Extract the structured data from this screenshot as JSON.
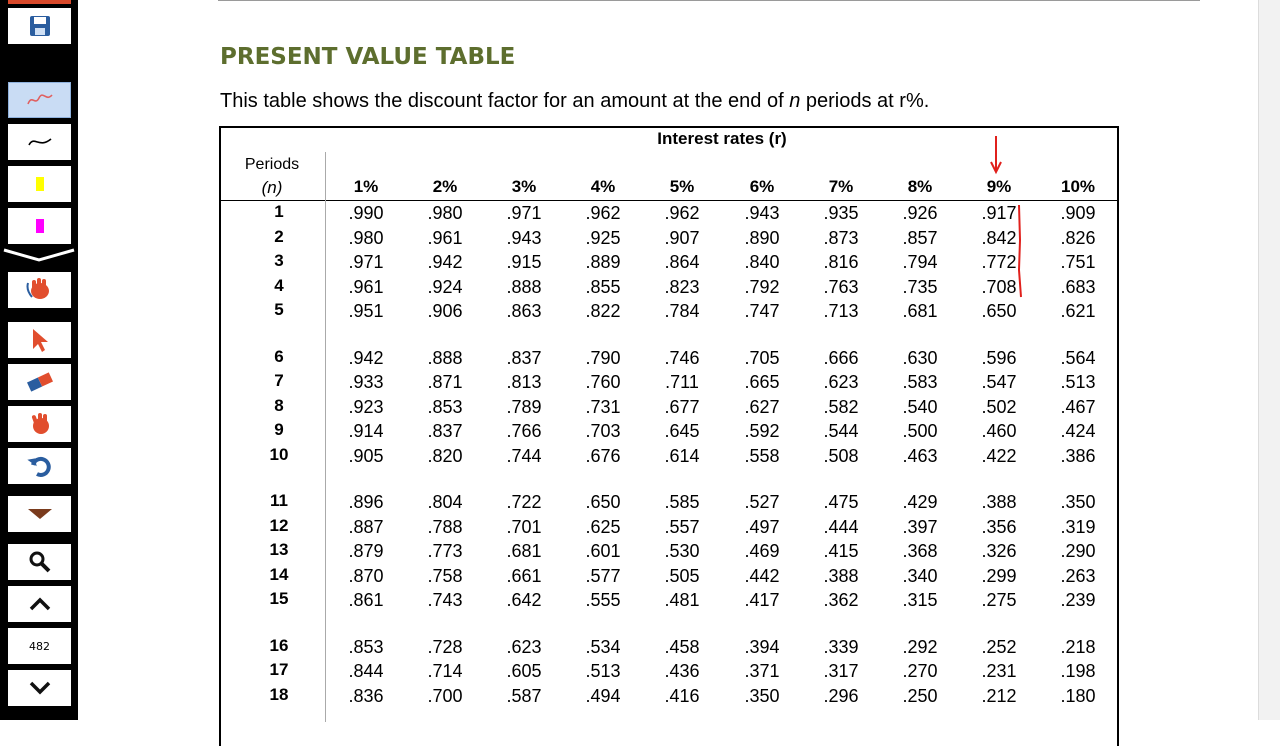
{
  "toolbar": {
    "page_number": "482",
    "buttons": [
      "save-icon",
      "pen-icon",
      "curve-icon",
      "yellow-highlighter-icon",
      "pink-highlighter-icon",
      "hand-icon",
      "pointer-icon",
      "eraser-icon",
      "grab-icon",
      "undo-icon",
      "dropdown-icon",
      "magnifier-icon",
      "chevron-up-icon",
      "chevron-down-icon"
    ]
  },
  "document": {
    "heading": "PRESENT VALUE TABLE",
    "description_prefix": "This table shows the discount factor for an amount at the end of ",
    "description_n": "n",
    "description_suffix": " periods at r%.",
    "table": {
      "rates_title": "Interest rates (r)",
      "periods_label": "Periods",
      "n_label": "(n)",
      "rates": [
        "1%",
        "2%",
        "3%",
        "4%",
        "5%",
        "6%",
        "7%",
        "8%",
        "9%",
        "10%"
      ],
      "rows": [
        {
          "n": "1",
          "v": [
            ".990",
            ".980",
            ".971",
            ".962",
            ".962",
            ".943",
            ".935",
            ".926",
            ".917",
            ".909"
          ]
        },
        {
          "n": "2",
          "v": [
            ".980",
            ".961",
            ".943",
            ".925",
            ".907",
            ".890",
            ".873",
            ".857",
            ".842",
            ".826"
          ]
        },
        {
          "n": "3",
          "v": [
            ".971",
            ".942",
            ".915",
            ".889",
            ".864",
            ".840",
            ".816",
            ".794",
            ".772",
            ".751"
          ]
        },
        {
          "n": "4",
          "v": [
            ".961",
            ".924",
            ".888",
            ".855",
            ".823",
            ".792",
            ".763",
            ".735",
            ".708",
            ".683"
          ]
        },
        {
          "n": "5",
          "v": [
            ".951",
            ".906",
            ".863",
            ".822",
            ".784",
            ".747",
            ".713",
            ".681",
            ".650",
            ".621"
          ]
        },
        {
          "n": "6",
          "v": [
            ".942",
            ".888",
            ".837",
            ".790",
            ".746",
            ".705",
            ".666",
            ".630",
            ".596",
            ".564"
          ]
        },
        {
          "n": "7",
          "v": [
            ".933",
            ".871",
            ".813",
            ".760",
            ".711",
            ".665",
            ".623",
            ".583",
            ".547",
            ".513"
          ]
        },
        {
          "n": "8",
          "v": [
            ".923",
            ".853",
            ".789",
            ".731",
            ".677",
            ".627",
            ".582",
            ".540",
            ".502",
            ".467"
          ]
        },
        {
          "n": "9",
          "v": [
            ".914",
            ".837",
            ".766",
            ".703",
            ".645",
            ".592",
            ".544",
            ".500",
            ".460",
            ".424"
          ]
        },
        {
          "n": "10",
          "v": [
            ".905",
            ".820",
            ".744",
            ".676",
            ".614",
            ".558",
            ".508",
            ".463",
            ".422",
            ".386"
          ]
        },
        {
          "n": "11",
          "v": [
            ".896",
            ".804",
            ".722",
            ".650",
            ".585",
            ".527",
            ".475",
            ".429",
            ".388",
            ".350"
          ]
        },
        {
          "n": "12",
          "v": [
            ".887",
            ".788",
            ".701",
            ".625",
            ".557",
            ".497",
            ".444",
            ".397",
            ".356",
            ".319"
          ]
        },
        {
          "n": "13",
          "v": [
            ".879",
            ".773",
            ".681",
            ".601",
            ".530",
            ".469",
            ".415",
            ".368",
            ".326",
            ".290"
          ]
        },
        {
          "n": "14",
          "v": [
            ".870",
            ".758",
            ".661",
            ".577",
            ".505",
            ".442",
            ".388",
            ".340",
            ".299",
            ".263"
          ]
        },
        {
          "n": "15",
          "v": [
            ".861",
            ".743",
            ".642",
            ".555",
            ".481",
            ".417",
            ".362",
            ".315",
            ".275",
            ".239"
          ]
        },
        {
          "n": "16",
          "v": [
            ".853",
            ".728",
            ".623",
            ".534",
            ".458",
            ".394",
            ".339",
            ".292",
            ".252",
            ".218"
          ]
        },
        {
          "n": "17",
          "v": [
            ".844",
            ".714",
            ".605",
            ".513",
            ".436",
            ".371",
            ".317",
            ".270",
            ".231",
            ".198"
          ]
        },
        {
          "n": "18",
          "v": [
            ".836",
            ".700",
            ".587",
            ".494",
            ".416",
            ".350",
            ".296",
            ".250",
            ".212",
            ".180"
          ]
        }
      ]
    }
  },
  "colors": {
    "heading": "#5d6e2e",
    "annotation": "#e0201c",
    "toolbar_bg": "#000000"
  }
}
